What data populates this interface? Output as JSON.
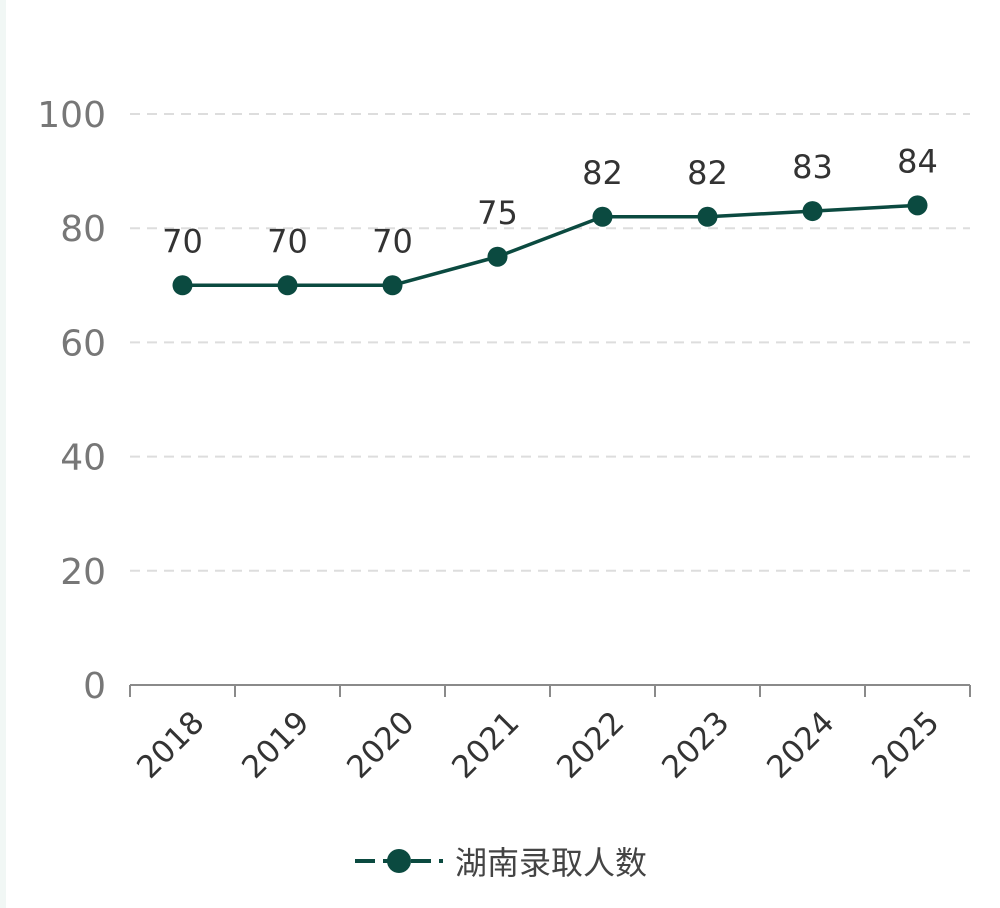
{
  "colors": {
    "series": "#0b4a40",
    "grid": "#dddddd",
    "axis": "#8a8a8a",
    "tick_text": "#777777",
    "label_text": "#333333"
  },
  "chart_data": {
    "type": "line",
    "x": [
      "2018",
      "2019",
      "2020",
      "2021",
      "2022",
      "2023",
      "2024",
      "2025"
    ],
    "series": [
      {
        "name": "湖南录取人数",
        "values": [
          70,
          70,
          70,
          75,
          82,
          82,
          83,
          84
        ]
      }
    ],
    "ylim": [
      0,
      100
    ],
    "yticks": [
      0,
      20,
      40,
      60,
      80,
      100
    ],
    "grid": true,
    "legend_position": "bottom",
    "data_labels": true
  }
}
